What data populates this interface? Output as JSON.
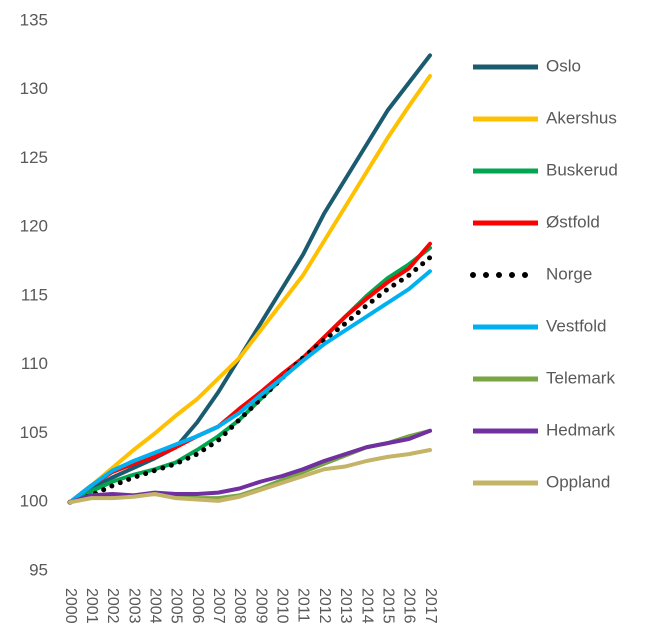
{
  "chart_data": {
    "type": "line",
    "x": [
      2000,
      2001,
      2002,
      2003,
      2004,
      2005,
      2006,
      2007,
      2008,
      2009,
      2010,
      2011,
      2012,
      2013,
      2014,
      2015,
      2016,
      2017
    ],
    "xticks": [
      2000,
      2001,
      2002,
      2003,
      2004,
      2005,
      2006,
      2007,
      2008,
      2009,
      2010,
      2011,
      2012,
      2013,
      2014,
      2015,
      2016,
      2017
    ],
    "xlim": [
      2000,
      2017
    ],
    "ylim": [
      95,
      135
    ],
    "yticks": [
      95,
      100,
      105,
      110,
      115,
      120,
      125,
      130,
      135
    ],
    "grid": false,
    "legend": "right",
    "series": [
      {
        "name": "Oslo",
        "color": "#1b5b6f",
        "values": [
          100,
          101,
          101.8,
          102.5,
          103.2,
          104,
          105.8,
          108,
          110.5,
          113,
          115.5,
          118,
          121,
          123.5,
          126,
          128.5,
          130.5,
          132.5
        ]
      },
      {
        "name": "Akershus",
        "color": "#ffc000",
        "values": [
          100,
          101.2,
          102.5,
          103.8,
          105,
          106.3,
          107.5,
          109,
          110.5,
          112.5,
          114.5,
          116.5,
          119,
          121.5,
          124,
          126.5,
          128.8,
          131
        ]
      },
      {
        "name": "Buskerud",
        "color": "#00a650",
        "values": [
          100,
          100.8,
          101.5,
          102,
          102.4,
          102.9,
          103.8,
          104.8,
          106,
          107.5,
          109,
          110.5,
          112,
          113.5,
          115,
          116.3,
          117.3,
          118.5
        ]
      },
      {
        "name": "Østfold",
        "color": "#ff0000",
        "values": [
          100,
          101.2,
          102.2,
          102.8,
          103.3,
          104,
          104.8,
          105.5,
          106.8,
          108,
          109.3,
          110.5,
          112,
          113.5,
          114.8,
          116,
          117,
          118.8
        ]
      },
      {
        "name": "Norge",
        "color": "#000000",
        "dash": "dotted",
        "values": [
          100,
          100.5,
          101.2,
          101.8,
          102.3,
          102.8,
          103.5,
          104.5,
          106,
          107.5,
          109,
          110.5,
          111.8,
          113,
          114.3,
          115.5,
          116.5,
          117.8
        ]
      },
      {
        "name": "Vestfold",
        "color": "#00b0f0",
        "values": [
          100,
          101.2,
          102.3,
          103,
          103.6,
          104.2,
          104.8,
          105.5,
          106.5,
          107.8,
          109,
          110.3,
          111.5,
          112.5,
          113.5,
          114.5,
          115.5,
          116.8
        ]
      },
      {
        "name": "Telemark",
        "color": "#77a642",
        "values": [
          100,
          100.4,
          100.5,
          100.5,
          100.6,
          100.4,
          100.3,
          100.3,
          100.5,
          101,
          101.6,
          102.2,
          102.8,
          103.4,
          104,
          104.3,
          104.8,
          105.2
        ]
      },
      {
        "name": "Hedmark",
        "color": "#7030a0",
        "values": [
          100,
          100.5,
          100.6,
          100.5,
          100.7,
          100.6,
          100.6,
          100.7,
          101,
          101.5,
          101.9,
          102.4,
          103,
          103.5,
          104,
          104.3,
          104.6,
          105.2
        ]
      },
      {
        "name": "Oppland",
        "color": "#c4b468",
        "values": [
          100,
          100.3,
          100.3,
          100.4,
          100.6,
          100.3,
          100.2,
          100.1,
          100.4,
          100.9,
          101.4,
          101.9,
          102.4,
          102.6,
          103,
          103.3,
          103.5,
          103.8
        ]
      }
    ]
  }
}
